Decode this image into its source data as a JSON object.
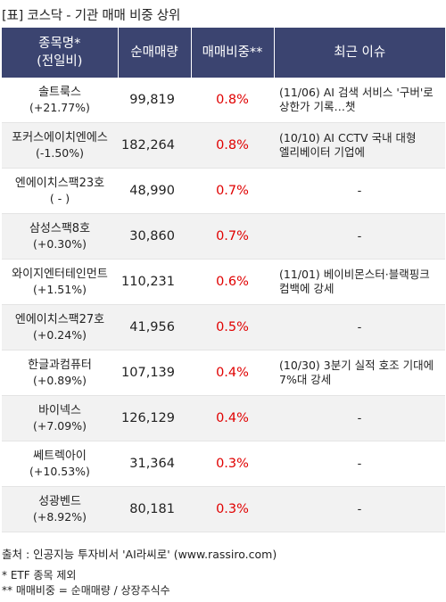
{
  "title": "[표] 코스닥 - 기관 매매 비중 상위",
  "headers": {
    "name_line1": "종목명*",
    "name_line2": "(전일비)",
    "volume": "순매매량",
    "ratio": "매매비중**",
    "issue": "최근 이슈"
  },
  "rows": [
    {
      "name": "솔트룩스",
      "change": "(+21.77%)",
      "volume": "99,819",
      "ratio": "0.8%",
      "issue": "(11/06) AI 검색 서비스 '구버'로 상한가 기록…챗"
    },
    {
      "name": "포커스에이치엔에스",
      "change": "(-1.50%)",
      "volume": "182,264",
      "ratio": "0.8%",
      "issue": "(10/10) AI CCTV 국내 대형 엘리베이터 기업에"
    },
    {
      "name": "엔에이치스팩23호",
      "change": "( - )",
      "volume": "48,990",
      "ratio": "0.7%",
      "issue": "-"
    },
    {
      "name": "삼성스팩8호",
      "change": "(+0.30%)",
      "volume": "30,860",
      "ratio": "0.7%",
      "issue": "-"
    },
    {
      "name": "와이지엔터테인먼트",
      "change": "(+1.51%)",
      "volume": "110,231",
      "ratio": "0.6%",
      "issue": "(11/01) 베이비몬스터·블랙핑크 컴백에 강세"
    },
    {
      "name": "엔에이치스팩27호",
      "change": "(+0.24%)",
      "volume": "41,956",
      "ratio": "0.5%",
      "issue": "-"
    },
    {
      "name": "한글과컴퓨터",
      "change": "(+0.89%)",
      "volume": "107,139",
      "ratio": "0.4%",
      "issue": "(10/30) 3분기 실적 호조 기대에 7%대 강세"
    },
    {
      "name": "바이넥스",
      "change": "(+7.09%)",
      "volume": "126,129",
      "ratio": "0.4%",
      "issue": "-"
    },
    {
      "name": "쎄트렉아이",
      "change": "(+10.53%)",
      "volume": "31,364",
      "ratio": "0.3%",
      "issue": "-"
    },
    {
      "name": "성광벤드",
      "change": "(+8.92%)",
      "volume": "80,181",
      "ratio": "0.3%",
      "issue": "-"
    }
  ],
  "footer": {
    "source": "출처 : 인공지능 투자비서 'AI라씨로' (www.rassiro.com)",
    "note1": "* ETF 종목 제외",
    "note2": "** 매매비중 = 순매매량 / 상장주식수"
  }
}
